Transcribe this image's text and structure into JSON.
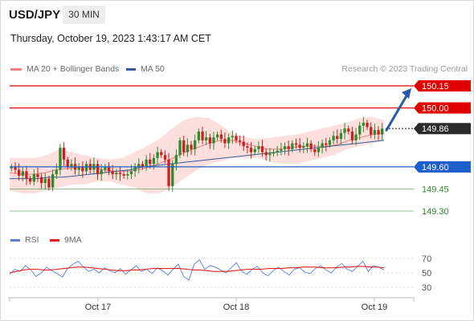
{
  "header": {
    "symbol": "USD/JPY",
    "timeframe": "30 MIN",
    "datetime": "Thursday, October 19, 2023 1:43:17 AM CET",
    "credit": "Research © 2023 Trading Central"
  },
  "colors": {
    "resistance": "#e00000",
    "support": "#1f5fcc",
    "support_green": "#2e8b2e",
    "current": "#2b2b2b",
    "candle_up": "#2e8b2e",
    "candle_down": "#cc1f1f",
    "band_fill": "#fdd8d5",
    "ma20": "#f08080",
    "ma50": "#335c99",
    "rsi": "#5b7fd6",
    "rsi_ma": "#e02020",
    "arrow": "#2a5aa8"
  },
  "legend": {
    "ma20_label": "MA 20 + Bollinger Bands",
    "ma50_label": "MA 50",
    "rsi_label": "RSI",
    "rsi_ma_label": "9MA"
  },
  "chart_data": [
    {
      "type": "candlestick",
      "ylim": [
        149.18,
        150.24
      ],
      "x_tick_labels": [
        "Oct 17",
        "Oct 18",
        "Oct 19"
      ],
      "levels": [
        {
          "value": 150.15,
          "label": "150.15",
          "kind": "resistance"
        },
        {
          "value": 150.0,
          "label": "150.00",
          "kind": "resistance"
        },
        {
          "value": 149.86,
          "label": "149.86",
          "kind": "current"
        },
        {
          "value": 149.6,
          "label": "149.60",
          "kind": "support"
        },
        {
          "value": 149.45,
          "label": "149.45",
          "kind": "support_green"
        },
        {
          "value": 149.3,
          "label": "149.30",
          "kind": "support_green"
        }
      ],
      "close": [
        149.6,
        149.58,
        149.54,
        149.57,
        149.52,
        149.5,
        149.55,
        149.53,
        149.49,
        149.52,
        149.46,
        149.55,
        149.58,
        149.73,
        149.65,
        149.6,
        149.62,
        149.58,
        149.6,
        149.57,
        149.62,
        149.58,
        149.62,
        149.55,
        149.58,
        149.6,
        149.57,
        149.55,
        149.56,
        149.55,
        149.54,
        149.55,
        149.57,
        149.6,
        149.62,
        149.6,
        149.65,
        149.62,
        149.66,
        149.7,
        149.68,
        149.65,
        149.47,
        149.62,
        149.68,
        149.78,
        149.7,
        149.75,
        149.72,
        149.78,
        149.84,
        149.78,
        149.8,
        149.76,
        149.8,
        149.82,
        149.79,
        149.76,
        149.8,
        149.81,
        149.78,
        149.77,
        149.74,
        149.73,
        149.7,
        149.72,
        149.74,
        149.7,
        149.68,
        149.69,
        149.7,
        149.71,
        149.72,
        149.74,
        149.72,
        149.76,
        149.75,
        149.73,
        149.74,
        149.76,
        149.72,
        149.7,
        149.73,
        149.76,
        149.75,
        149.78,
        149.81,
        149.79,
        149.83,
        149.86,
        149.84,
        149.78,
        149.82,
        149.88,
        149.9,
        149.87,
        149.82,
        149.85,
        149.82,
        149.86
      ],
      "ma50": [
        149.52,
        149.52,
        149.52,
        149.53,
        149.53,
        149.54,
        149.55,
        149.56,
        149.57,
        149.58,
        149.6,
        149.61,
        149.62,
        149.63,
        149.64,
        149.65,
        149.66,
        149.67,
        149.68,
        149.69,
        149.7,
        149.71,
        149.72,
        149.73,
        149.74,
        149.75,
        149.76,
        149.77,
        149.78
      ],
      "ma20": [
        149.56,
        149.55,
        149.55,
        149.56,
        149.58,
        149.59,
        149.6,
        149.6,
        149.58,
        149.57,
        149.57,
        149.58,
        149.6,
        149.63,
        149.66,
        149.7,
        149.73,
        149.76,
        149.78,
        149.78,
        149.76,
        149.74,
        149.72,
        149.72,
        149.73,
        149.74,
        149.74,
        149.74,
        149.75,
        149.78,
        149.8,
        149.82,
        149.83
      ],
      "bb_upper": [
        149.66,
        149.66,
        149.66,
        149.68,
        149.72,
        149.7,
        149.68,
        149.66,
        149.65,
        149.66,
        149.7,
        149.74,
        149.79,
        149.86,
        149.92,
        149.94,
        149.93,
        149.88,
        149.82,
        149.8,
        149.79,
        149.8,
        149.81,
        149.82,
        149.84,
        149.86,
        149.88,
        149.9,
        149.93,
        149.94,
        149.92
      ],
      "bb_lower": [
        149.44,
        149.42,
        149.42,
        149.44,
        149.46,
        149.48,
        149.48,
        149.5,
        149.5,
        149.48,
        149.46,
        149.42,
        149.42,
        149.46,
        149.52,
        149.58,
        149.62,
        149.64,
        149.66,
        149.66,
        149.66,
        149.63,
        149.62,
        149.62,
        149.64,
        149.66,
        149.68,
        149.72,
        149.74,
        149.76,
        149.78
      ],
      "projection_arrow": {
        "from": 149.86,
        "to": 150.15
      }
    },
    {
      "type": "line",
      "series": [
        {
          "name": "RSI",
          "values": [
            48,
            55,
            52,
            60,
            54,
            45,
            50,
            58,
            53,
            49,
            44,
            56,
            62,
            66,
            58,
            52,
            55,
            50,
            57,
            53,
            50,
            56,
            48,
            54,
            60,
            52,
            55,
            49,
            57,
            53,
            47,
            55,
            62,
            45,
            40,
            62,
            68,
            55,
            60,
            58,
            54,
            50,
            57,
            64,
            52,
            48,
            55,
            59,
            50,
            46,
            53,
            58,
            52,
            47,
            55,
            57,
            51,
            49,
            56,
            60,
            54,
            50,
            58,
            63,
            55,
            52,
            59,
            66,
            52,
            60,
            58,
            54
          ]
        },
        {
          "name": "9MA",
          "values": [
            50,
            52,
            54,
            55,
            55,
            54,
            54,
            55,
            56,
            57,
            58,
            58,
            57,
            56,
            55,
            54,
            53,
            53,
            54,
            54,
            55,
            56,
            56,
            56,
            56,
            56,
            55,
            54,
            54,
            53,
            52,
            52,
            52,
            53,
            54,
            55,
            55,
            55,
            56,
            56,
            56,
            57,
            57,
            58,
            58,
            58,
            57,
            57,
            57,
            58,
            58,
            59,
            59,
            58,
            58,
            57
          ]
        }
      ],
      "ylim": [
        25,
        75
      ],
      "y_tick_labels": [
        "70",
        "50",
        "30"
      ],
      "y_ticks": [
        70,
        50,
        30
      ]
    }
  ]
}
